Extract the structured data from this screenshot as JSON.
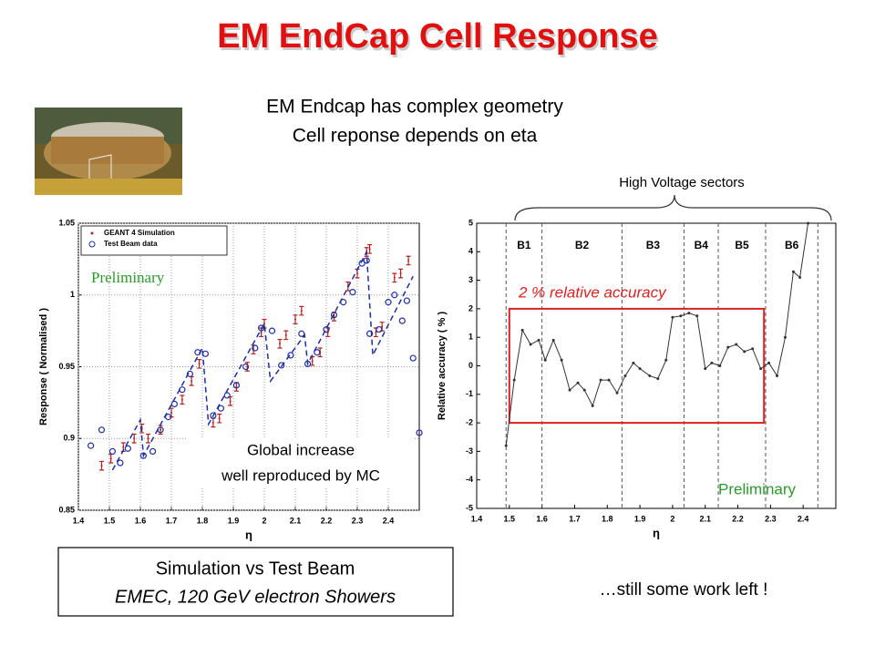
{
  "title": "EM EndCap Cell Response",
  "intro": [
    "EM Endcap has complex geometry",
    "Cell reponse depends on eta"
  ],
  "hv_label": "High Voltage sectors",
  "left_notes": {
    "preliminary": "Preliminary",
    "comment": [
      "Global increase",
      "well reproduced by MC"
    ]
  },
  "right_notes": {
    "accuracy": "2 % relative accuracy",
    "preliminary": "Preliminary"
  },
  "caption": [
    "Simulation  vs Test Beam",
    "EMEC, 120 GeV electron Showers"
  ],
  "footer": "…still some work left !",
  "chart_data": [
    {
      "type": "scatter",
      "xlabel": "η",
      "ylabel": "Response ( Normalised )",
      "xlim": [
        1.4,
        2.5
      ],
      "ylim": [
        0.85,
        1.05
      ],
      "xticks": [
        1.4,
        1.5,
        1.6,
        1.7,
        1.8,
        1.9,
        2,
        2.1,
        2.2,
        2.3,
        2.4
      ],
      "yticks": [
        0.85,
        0.9,
        0.95,
        1,
        1.05
      ],
      "grid": true,
      "legend": "top-left",
      "series": [
        {
          "name": "GEANT 4 Simulation",
          "color": "#b22222",
          "marker": "errorbar",
          "x": [
            1.475,
            1.505,
            1.545,
            1.58,
            1.605,
            1.625,
            1.665,
            1.7,
            1.735,
            1.765,
            1.79,
            1.835,
            1.855,
            1.89,
            1.91,
            1.945,
            1.965,
            1.99,
            2.0,
            2.05,
            2.07,
            2.1,
            2.12,
            2.155,
            2.18,
            2.205,
            2.225,
            2.27,
            2.3,
            2.33,
            2.34,
            2.36,
            2.38,
            2.42,
            2.44,
            2.465
          ],
          "values": [
            0.881,
            0.886,
            0.894,
            0.9,
            0.907,
            0.9,
            0.906,
            0.918,
            0.927,
            0.94,
            0.952,
            0.911,
            0.914,
            0.926,
            0.936,
            0.95,
            0.962,
            0.974,
            0.98,
            0.966,
            0.972,
            0.983,
            0.989,
            0.954,
            0.96,
            0.974,
            0.985,
            1.006,
            1.015,
            1.03,
            1.032,
            0.974,
            0.978,
            1.012,
            1.015,
            1.024
          ],
          "errors": [
            0.003,
            0.003,
            0.003,
            0.003,
            0.003,
            0.003,
            0.003,
            0.003,
            0.003,
            0.003,
            0.003,
            0.003,
            0.003,
            0.003,
            0.003,
            0.003,
            0.003,
            0.003,
            0.003,
            0.003,
            0.003,
            0.003,
            0.003,
            0.003,
            0.003,
            0.003,
            0.003,
            0.003,
            0.003,
            0.003,
            0.003,
            0.003,
            0.003,
            0.003,
            0.003,
            0.003
          ]
        },
        {
          "name": "Test Beam data",
          "color": "#1f2f9f",
          "marker": "circle",
          "x": [
            1.44,
            1.475,
            1.51,
            1.535,
            1.56,
            1.61,
            1.64,
            1.665,
            1.69,
            1.71,
            1.735,
            1.76,
            1.785,
            1.81,
            1.835,
            1.86,
            1.88,
            1.91,
            1.94,
            1.97,
            1.99,
            2.025,
            2.055,
            2.085,
            2.12,
            2.14,
            2.17,
            2.2,
            2.225,
            2.255,
            2.285,
            2.315,
            2.33,
            2.34,
            2.37,
            2.4,
            2.42,
            2.445,
            2.46,
            2.48,
            2.5
          ],
          "values": [
            0.895,
            0.906,
            0.891,
            0.883,
            0.893,
            0.888,
            0.891,
            0.906,
            0.915,
            0.924,
            0.934,
            0.945,
            0.96,
            0.959,
            0.916,
            0.921,
            0.93,
            0.937,
            0.95,
            0.963,
            0.977,
            0.975,
            0.951,
            0.958,
            0.973,
            0.952,
            0.96,
            0.976,
            0.986,
            0.995,
            1.002,
            1.022,
            1.024,
            0.973,
            0.976,
            0.995,
            1.0,
            0.982,
            0.996,
            0.956,
            0.904
          ]
        },
        {
          "color": "#1f2f9f",
          "style": "dashed",
          "x": [
            1.51,
            1.6,
            1.61,
            1.8,
            1.82,
            2.0,
            2.02,
            2.13,
            2.14,
            2.33,
            2.35,
            2.48
          ],
          "values": [
            0.878,
            0.913,
            0.888,
            0.963,
            0.91,
            0.98,
            0.94,
            0.972,
            0.952,
            1.03,
            0.958,
            1.013
          ]
        }
      ]
    },
    {
      "type": "line",
      "xlabel": "η",
      "ylabel": "Relative accuracy ( % )",
      "xlim": [
        1.4,
        2.5
      ],
      "ylim": [
        -5,
        5
      ],
      "xticks": [
        1.4,
        1.5,
        1.6,
        1.7,
        1.8,
        1.9,
        2,
        2.1,
        2.2,
        2.3,
        2.4
      ],
      "yticks": [
        -5,
        -4,
        -3,
        -2,
        -1,
        0,
        1,
        2,
        3,
        4,
        5
      ],
      "grid": false,
      "sectors": [
        {
          "label": "B1",
          "start": 1.49,
          "end": 1.6
        },
        {
          "label": "B2",
          "start": 1.6,
          "end": 1.845
        },
        {
          "label": "B3",
          "start": 1.845,
          "end": 2.035
        },
        {
          "label": "B4",
          "start": 2.035,
          "end": 2.14
        },
        {
          "label": "B5",
          "start": 2.14,
          "end": 2.285
        },
        {
          "label": "B6",
          "start": 2.285,
          "end": 2.445
        }
      ],
      "accuracy_box": {
        "x": [
          1.5,
          2.28
        ],
        "y": [
          -2,
          2
        ],
        "color": "#dd2222"
      },
      "series": [
        {
          "color": "#333333",
          "marker": "dot",
          "x": [
            1.49,
            1.515,
            1.54,
            1.565,
            1.59,
            1.61,
            1.635,
            1.66,
            1.685,
            1.71,
            1.73,
            1.755,
            1.78,
            1.805,
            1.83,
            1.855,
            1.88,
            1.9,
            1.93,
            1.955,
            1.98,
            2.0,
            2.025,
            2.05,
            2.075,
            2.1,
            2.12,
            2.145,
            2.17,
            2.195,
            2.22,
            2.245,
            2.27,
            2.295,
            2.32,
            2.345,
            2.37,
            2.39,
            2.415
          ],
          "values": [
            -2.8,
            -0.5,
            1.25,
            0.75,
            0.9,
            0.2,
            0.9,
            0.2,
            -0.85,
            -0.6,
            -0.85,
            -1.4,
            -0.5,
            -0.5,
            -0.95,
            -0.35,
            0.1,
            -0.1,
            -0.35,
            -0.45,
            0.2,
            1.7,
            1.75,
            1.85,
            1.75,
            -0.1,
            0.1,
            0,
            0.65,
            0.75,
            0.5,
            0.6,
            -0.1,
            0.1,
            -0.35,
            1.0,
            3.3,
            3.1,
            5
          ]
        }
      ]
    }
  ]
}
